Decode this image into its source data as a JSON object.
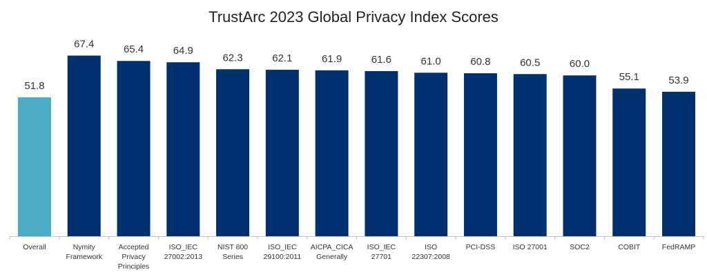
{
  "chart_data": {
    "type": "bar",
    "title": "TrustArc 2023 Global Privacy Index Scores",
    "categories": [
      [
        "Overall"
      ],
      [
        "Nymity",
        "Framework"
      ],
      [
        "Accepted",
        "Privacy",
        "Principles"
      ],
      [
        "ISO_IEC",
        "27002:2013"
      ],
      [
        "NIST 800",
        "Series"
      ],
      [
        "ISO_IEC",
        "29100:2011"
      ],
      [
        "AICPA_CICA",
        "Generally"
      ],
      [
        "ISO_IEC",
        "27701"
      ],
      [
        "ISO",
        "22307:2008"
      ],
      [
        "PCI-DSS"
      ],
      [
        "ISO 27001"
      ],
      [
        "SOC2"
      ],
      [
        "COBIT"
      ],
      [
        "FedRAMP"
      ]
    ],
    "values": [
      51.8,
      67.4,
      65.4,
      64.9,
      62.3,
      62.1,
      61.9,
      61.6,
      61.0,
      60.8,
      60.5,
      60.0,
      55.1,
      53.9
    ],
    "value_labels": [
      "51.8",
      "67.4",
      "65.4",
      "64.9",
      "62.3",
      "62.1",
      "61.9",
      "61.6",
      "61.0",
      "60.8",
      "60.5",
      "60.0",
      "55.1",
      "53.9"
    ],
    "xlabel": "",
    "ylabel": "",
    "ylim": [
      0,
      88
    ],
    "grid": false,
    "colors": {
      "highlight": "#4BACC6",
      "bar": "#00306E",
      "axis": "#BFBFBF"
    }
  }
}
